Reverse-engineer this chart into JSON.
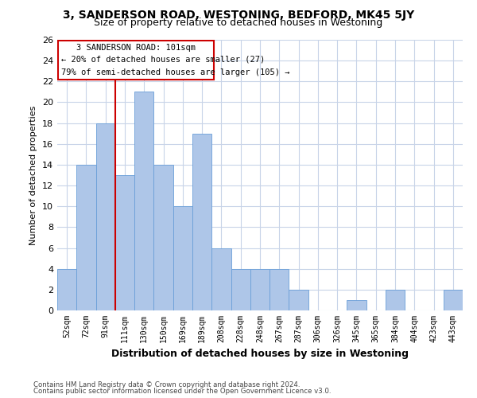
{
  "title": "3, SANDERSON ROAD, WESTONING, BEDFORD, MK45 5JY",
  "subtitle": "Size of property relative to detached houses in Westoning",
  "xlabel": "Distribution of detached houses by size in Westoning",
  "ylabel": "Number of detached properties",
  "categories": [
    "52sqm",
    "72sqm",
    "91sqm",
    "111sqm",
    "130sqm",
    "150sqm",
    "169sqm",
    "189sqm",
    "208sqm",
    "228sqm",
    "248sqm",
    "267sqm",
    "287sqm",
    "306sqm",
    "326sqm",
    "345sqm",
    "365sqm",
    "384sqm",
    "404sqm",
    "423sqm",
    "443sqm"
  ],
  "bar_heights": [
    4,
    14,
    18,
    13,
    21,
    14,
    10,
    17,
    6,
    4,
    4,
    4,
    2,
    0,
    0,
    1,
    0,
    2,
    0,
    0,
    2
  ],
  "bar_color": "#aec6e8",
  "bar_edge_color": "#6a9fd8",
  "grid_color": "#c8d4e8",
  "annotation_box_edge_color": "#cc0000",
  "annotation_box_face_color": "#ffffff",
  "annotation_text_line1": "3 SANDERSON ROAD: 101sqm",
  "annotation_text_line2": "← 20% of detached houses are smaller (27)",
  "annotation_text_line3": "79% of semi-detached houses are larger (105) →",
  "property_line_x": 2.5,
  "ylim": [
    0,
    26
  ],
  "yticks": [
    0,
    2,
    4,
    6,
    8,
    10,
    12,
    14,
    16,
    18,
    20,
    22,
    24,
    26
  ],
  "footer_line1": "Contains HM Land Registry data © Crown copyright and database right 2024.",
  "footer_line2": "Contains public sector information licensed under the Open Government Licence v3.0.",
  "background_color": "#ffffff",
  "title_fontsize": 10,
  "subtitle_fontsize": 9
}
